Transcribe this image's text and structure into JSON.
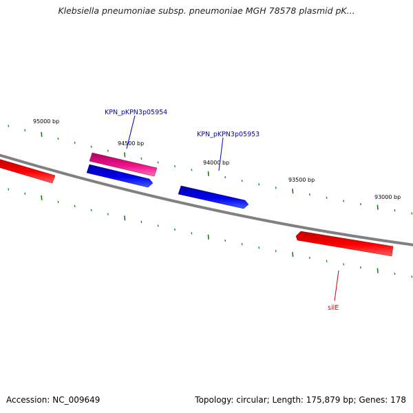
{
  "title": "Klebsiella pneumoniae subsp. pneumoniae MGH 78578 plasmid pK...",
  "footer": {
    "accession": "Accession: NC_009649",
    "summary": "Topology: circular; Length: 175,879 bp; Genes: 178"
  },
  "scale_labels": [
    "95000 bp",
    "94500 bp",
    "94000 bp",
    "93500 bp",
    "93000 bp"
  ],
  "gene_labels": [
    {
      "text": "KPN_pKPN3p05954",
      "color": "#0000cc"
    },
    {
      "text": "KPN_pKPN3p05953",
      "color": "#0000cc"
    },
    {
      "text": "silE",
      "color": "#cc0000"
    }
  ],
  "colors": {
    "backbone": "#808080",
    "tick": "#1a7a1a",
    "forward_gene": "#ff0000",
    "blue_gene": "#0000ee",
    "pink_gene": "#ee1188"
  }
}
